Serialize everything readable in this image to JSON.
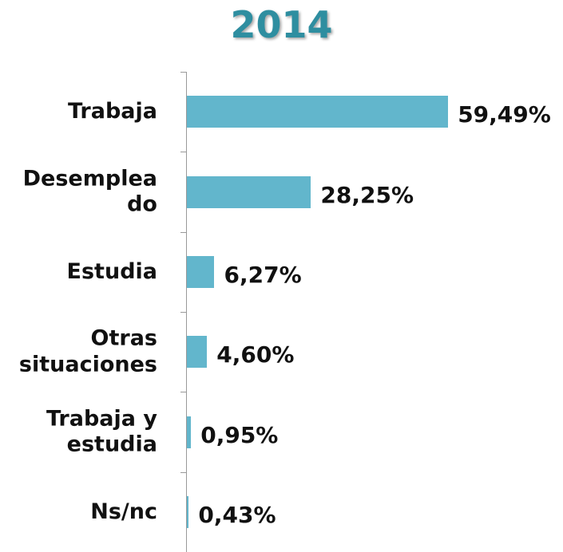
{
  "chart_data": {
    "type": "barh",
    "title": "2014",
    "categories": [
      "Trabaja",
      "Desemplea\ndo",
      "Estudia",
      "Otras\nsituaciones",
      "Trabaja y\nestudia",
      "Ns/nc"
    ],
    "values": [
      59.49,
      28.25,
      6.27,
      4.6,
      0.95,
      0.43
    ],
    "value_labels": [
      "59,49%",
      "28,25%",
      "6,27%",
      "4,60%",
      "0,95%",
      "0,43%"
    ],
    "color": "#62b6cc",
    "xlim": [
      0,
      60
    ]
  }
}
